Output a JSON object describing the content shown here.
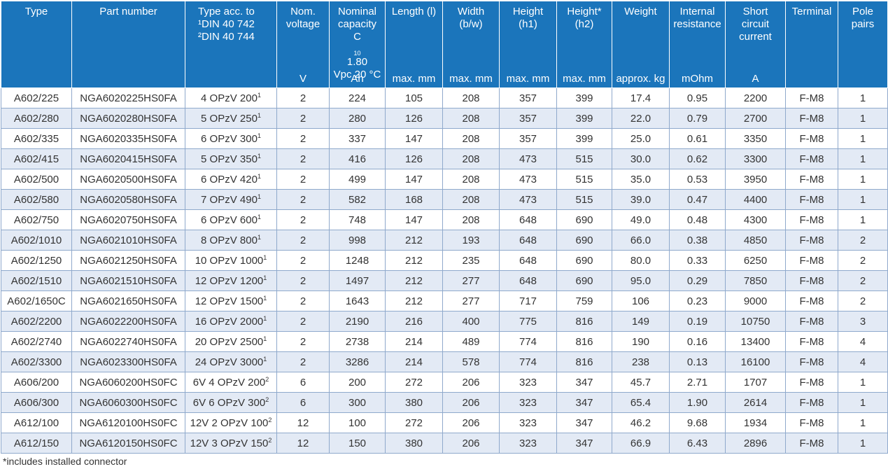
{
  "headers": {
    "type": "Type",
    "part_number": "Part number",
    "type_acc": [
      "Type acc. to",
      "¹DIN 40 742",
      "²DIN 40 744"
    ],
    "nom_voltage": [
      "Nom.",
      "voltage"
    ],
    "nom_voltage_unit": "V",
    "capacity": [
      "Nominal",
      "capacity"
    ],
    "capacity_c": "C",
    "capacity_sub": "10",
    "capacity_val": " 1.80",
    "capacity_line4": "Vpc 20 °C",
    "capacity_unit": "Ah",
    "length": "Length (l)",
    "length_unit": "max. mm",
    "width": [
      "Width",
      "(b/w)"
    ],
    "width_unit": "max. mm",
    "height1": [
      "Height",
      "(h1)"
    ],
    "height1_unit": "max. mm",
    "height2": [
      "Height*",
      "(h2)"
    ],
    "height2_unit": "max. mm",
    "weight": "Weight",
    "weight_unit": "approx. kg",
    "resistance": [
      "Internal",
      "resistance"
    ],
    "resistance_unit": "mOhm",
    "short_circuit": [
      "Short",
      "circuit",
      "current"
    ],
    "short_circuit_unit": "A",
    "terminal": "Terminal",
    "pole_pairs": [
      "Pole",
      "pairs"
    ]
  },
  "rows": [
    {
      "type": "A602/225",
      "part": "NGA6020225HS0FA",
      "acc": "4 OPzV 200",
      "sup": "1",
      "v": "2",
      "ah": "224",
      "l": "105",
      "w": "208",
      "h1": "357",
      "h2": "399",
      "kg": "17.4",
      "mohm": "0.95",
      "a": "2200",
      "term": "F-M8",
      "poles": "1"
    },
    {
      "type": "A602/280",
      "part": "NGA6020280HS0FA",
      "acc": "5 OPzV 250",
      "sup": "1",
      "v": "2",
      "ah": "280",
      "l": "126",
      "w": "208",
      "h1": "357",
      "h2": "399",
      "kg": "22.0",
      "mohm": "0.79",
      "a": "2700",
      "term": "F-M8",
      "poles": "1"
    },
    {
      "type": "A602/335",
      "part": "NGA6020335HS0FA",
      "acc": "6 OPzV 300",
      "sup": "1",
      "v": "2",
      "ah": "337",
      "l": "147",
      "w": "208",
      "h1": "357",
      "h2": "399",
      "kg": "25.0",
      "mohm": "0.61",
      "a": "3350",
      "term": "F-M8",
      "poles": "1"
    },
    {
      "type": "A602/415",
      "part": "NGA6020415HS0FA",
      "acc": "5 OPzV 350",
      "sup": "1",
      "v": "2",
      "ah": "416",
      "l": "126",
      "w": "208",
      "h1": "473",
      "h2": "515",
      "kg": "30.0",
      "mohm": "0.62",
      "a": "3300",
      "term": "F-M8",
      "poles": "1"
    },
    {
      "type": "A602/500",
      "part": "NGA6020500HS0FA",
      "acc": "6 OPzV 420",
      "sup": "1",
      "v": "2",
      "ah": "499",
      "l": "147",
      "w": "208",
      "h1": "473",
      "h2": "515",
      "kg": "35.0",
      "mohm": "0.53",
      "a": "3950",
      "term": "F-M8",
      "poles": "1"
    },
    {
      "type": "A602/580",
      "part": "NGA6020580HS0FA",
      "acc": "7 OPzV 490",
      "sup": "1",
      "v": "2",
      "ah": "582",
      "l": "168",
      "w": "208",
      "h1": "473",
      "h2": "515",
      "kg": "39.0",
      "mohm": "0.47",
      "a": "4400",
      "term": "F-M8",
      "poles": "1"
    },
    {
      "type": "A602/750",
      "part": "NGA6020750HS0FA",
      "acc": "6 OPzV 600",
      "sup": "1",
      "v": "2",
      "ah": "748",
      "l": "147",
      "w": "208",
      "h1": "648",
      "h2": "690",
      "kg": "49.0",
      "mohm": "0.48",
      "a": "4300",
      "term": "F-M8",
      "poles": "1"
    },
    {
      "type": "A602/1010",
      "part": "NGA6021010HS0FA",
      "acc": "8 OPzV 800",
      "sup": "1",
      "v": "2",
      "ah": "998",
      "l": "212",
      "w": "193",
      "h1": "648",
      "h2": "690",
      "kg": "66.0",
      "mohm": "0.38",
      "a": "4850",
      "term": "F-M8",
      "poles": "2"
    },
    {
      "type": "A602/1250",
      "part": "NGA6021250HS0FA",
      "acc": "10 OPzV 1000",
      "sup": "1",
      "v": "2",
      "ah": "1248",
      "l": "212",
      "w": "235",
      "h1": "648",
      "h2": "690",
      "kg": "80.0",
      "mohm": "0.33",
      "a": "6250",
      "term": "F-M8",
      "poles": "2"
    },
    {
      "type": "A602/1510",
      "part": "NGA6021510HS0FA",
      "acc": "12 OPzV 1200",
      "sup": "1",
      "v": "2",
      "ah": "1497",
      "l": "212",
      "w": "277",
      "h1": "648",
      "h2": "690",
      "kg": "95.0",
      "mohm": "0.29",
      "a": "7850",
      "term": "F-M8",
      "poles": "2"
    },
    {
      "type": "A602/1650C",
      "part": "NGA6021650HS0FA",
      "acc": "12 OPzV 1500",
      "sup": "1",
      "v": "2",
      "ah": "1643",
      "l": "212",
      "w": "277",
      "h1": "717",
      "h2": "759",
      "kg": "106",
      "mohm": "0.23",
      "a": "9000",
      "term": "F-M8",
      "poles": "2"
    },
    {
      "type": "A602/2200",
      "part": "NGA6022200HS0FA",
      "acc": "16 OPzV 2000",
      "sup": "1",
      "v": "2",
      "ah": "2190",
      "l": "216",
      "w": "400",
      "h1": "775",
      "h2": "816",
      "kg": "149",
      "mohm": "0.19",
      "a": "10750",
      "term": "F-M8",
      "poles": "3"
    },
    {
      "type": "A602/2740",
      "part": "NGA6022740HS0FA",
      "acc": "20 OPzV 2500",
      "sup": "1",
      "v": "2",
      "ah": "2738",
      "l": "214",
      "w": "489",
      "h1": "774",
      "h2": "816",
      "kg": "190",
      "mohm": "0.16",
      "a": "13400",
      "term": "F-M8",
      "poles": "4"
    },
    {
      "type": "A602/3300",
      "part": "NGA6023300HS0FA",
      "acc": "24 OPzV 3000",
      "sup": "1",
      "v": "2",
      "ah": "3286",
      "l": "214",
      "w": "578",
      "h1": "774",
      "h2": "816",
      "kg": "238",
      "mohm": "0.13",
      "a": "16100",
      "term": "F-M8",
      "poles": "4"
    },
    {
      "type": "A606/200",
      "part": "NGA6060200HS0FC",
      "acc": "6V 4 OPzV 200",
      "sup": "2",
      "v": "6",
      "ah": "200",
      "l": "272",
      "w": "206",
      "h1": "323",
      "h2": "347",
      "kg": "45.7",
      "mohm": "2.71",
      "a": "1707",
      "term": "F-M8",
      "poles": "1"
    },
    {
      "type": "A606/300",
      "part": "NGA6060300HS0FC",
      "acc": "6V 6 OPzV 300",
      "sup": "2",
      "v": "6",
      "ah": "300",
      "l": "380",
      "w": "206",
      "h1": "323",
      "h2": "347",
      "kg": "65.4",
      "mohm": "1.90",
      "a": "2614",
      "term": "F-M8",
      "poles": "1"
    },
    {
      "type": "A612/100",
      "part": "NGA6120100HS0FC",
      "acc": "12V 2 OPzV 100",
      "sup": "2",
      "v": "12",
      "ah": "100",
      "l": "272",
      "w": "206",
      "h1": "323",
      "h2": "347",
      "kg": "46.2",
      "mohm": "9.68",
      "a": "1934",
      "term": "F-M8",
      "poles": "1"
    },
    {
      "type": "A612/150",
      "part": "NGA6120150HS0FC",
      "acc": "12V 3 OPzV 150",
      "sup": "2",
      "v": "12",
      "ah": "150",
      "l": "380",
      "w": "206",
      "h1": "323",
      "h2": "347",
      "kg": "66.9",
      "mohm": "6.43",
      "a": "2896",
      "term": "F-M8",
      "poles": "1"
    }
  ],
  "footnote": "*includes installed connector",
  "colors": {
    "header_bg": "#1b75bb",
    "row_alt_bg": "#e3eaf5",
    "grid": "#8fa9cc"
  }
}
